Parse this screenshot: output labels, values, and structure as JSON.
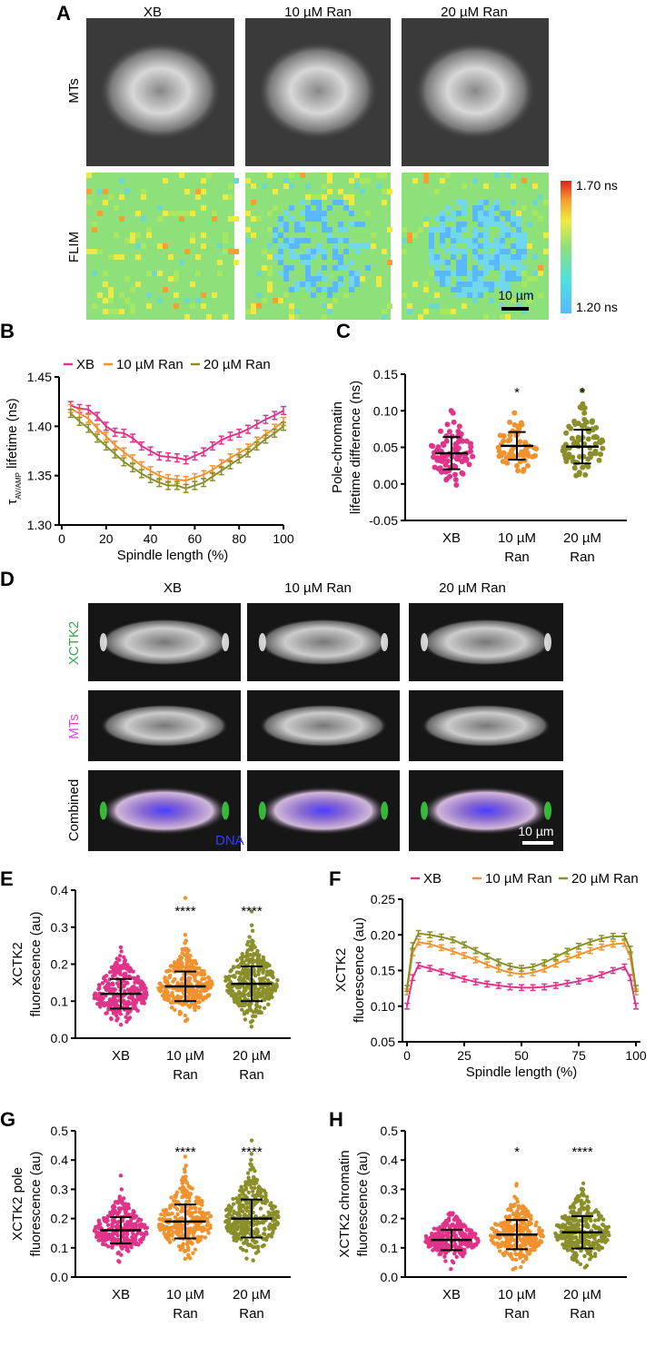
{
  "colors": {
    "XB": "#e0338a",
    "10 µM Ran": "#f0922e",
    "20 µM Ran": "#8a8f2a",
    "XCTK2": "#3aa64a",
    "MTs": "#e040e0",
    "DNA": "#3a3aff"
  },
  "panelA": {
    "label": "A",
    "columns": [
      "XB",
      "10 µM Ran",
      "20 µM Ran"
    ],
    "rows": [
      "MTs",
      "FLIM"
    ],
    "colorbar": {
      "max": "1.70 ns",
      "min": "1.20 ns"
    },
    "scalebar": "10 µm"
  },
  "panelD": {
    "label": "D",
    "columns": [
      "XB",
      "10 µM Ran",
      "20 µM Ran"
    ],
    "rows": [
      "XCTK2",
      "MTs",
      "Combined"
    ],
    "dna_label": "DNA",
    "scalebar": "10 µm"
  },
  "chart_data": [
    {
      "panel": "B",
      "type": "line",
      "xlabel": "Spindle length (%)",
      "ylabel_main": "τ",
      "ylabel_sub": "AV/AMP",
      "ylabel_rest": " lifetime (ns)",
      "xlim": [
        0,
        100
      ],
      "ylim": [
        1.3,
        1.45
      ],
      "xticks": [
        "0",
        "20",
        "40",
        "60",
        "80",
        "100"
      ],
      "yticks": [
        "1.30",
        "1.35",
        "1.40",
        "1.45"
      ],
      "legend": "top",
      "x": [
        4,
        8,
        12,
        16,
        20,
        24,
        28,
        32,
        36,
        40,
        44,
        48,
        52,
        56,
        60,
        64,
        68,
        72,
        76,
        80,
        84,
        88,
        92,
        96,
        100
      ],
      "series": [
        {
          "name": "XB",
          "values": [
            1.421,
            1.418,
            1.417,
            1.41,
            1.4,
            1.394,
            1.393,
            1.388,
            1.38,
            1.375,
            1.37,
            1.369,
            1.368,
            1.366,
            1.37,
            1.374,
            1.38,
            1.386,
            1.39,
            1.393,
            1.397,
            1.402,
            1.407,
            1.411,
            1.416
          ],
          "error": 0.004
        },
        {
          "name": "10 µM Ran",
          "values": [
            1.418,
            1.413,
            1.408,
            1.398,
            1.39,
            1.381,
            1.374,
            1.367,
            1.36,
            1.355,
            1.35,
            1.347,
            1.346,
            1.345,
            1.348,
            1.351,
            1.356,
            1.362,
            1.368,
            1.373,
            1.378,
            1.385,
            1.392,
            1.398,
            1.405
          ],
          "error": 0.004
        },
        {
          "name": "20 µM Ran",
          "values": [
            1.413,
            1.405,
            1.398,
            1.388,
            1.38,
            1.372,
            1.364,
            1.358,
            1.352,
            1.347,
            1.343,
            1.34,
            1.34,
            1.337,
            1.34,
            1.343,
            1.349,
            1.355,
            1.361,
            1.367,
            1.373,
            1.38,
            1.387,
            1.393,
            1.4
          ],
          "error": 0.004
        }
      ]
    },
    {
      "panel": "C",
      "type": "scatter",
      "ylabel": [
        "Pole-chromatin",
        "lifetime difference (ns)"
      ],
      "ylim": [
        -0.05,
        0.15
      ],
      "yticks": [
        "-0.05",
        "0.00",
        "0.05",
        "0.10",
        "0.15"
      ],
      "categories": [
        [
          "XB",
          ""
        ],
        [
          "10 µM",
          "Ran"
        ],
        [
          "20 µM",
          "Ran"
        ]
      ],
      "mean": [
        0.042,
        0.052,
        0.051
      ],
      "sd": [
        0.022,
        0.019,
        0.023
      ],
      "n": [
        80,
        55,
        80
      ],
      "significance": [
        "",
        "*",
        "*"
      ]
    },
    {
      "panel": "E",
      "type": "scatter",
      "ylabel": [
        "XCTK2",
        "fluorescence (au)"
      ],
      "ylim": [
        0,
        0.4
      ],
      "yticks": [
        "0.0",
        "0.1",
        "0.2",
        "0.3",
        "0.4"
      ],
      "categories": [
        [
          "XB",
          ""
        ],
        [
          "10 µM",
          "Ran"
        ],
        [
          "20 µM",
          "Ran"
        ]
      ],
      "mean": [
        0.12,
        0.14,
        0.147
      ],
      "sd": [
        0.04,
        0.04,
        0.047
      ],
      "n": [
        300,
        320,
        360
      ],
      "significance": [
        "",
        "****",
        "****"
      ]
    },
    {
      "panel": "F",
      "type": "line",
      "xlabel": "Spindle length (%)",
      "ylabel": [
        "XCTK2",
        "fluorescence (au)"
      ],
      "xlim": [
        0,
        100
      ],
      "ylim": [
        0.05,
        0.25
      ],
      "xticks": [
        "0",
        "25",
        "50",
        "75",
        "100"
      ],
      "yticks": [
        "0.05",
        "0.10",
        "0.15",
        "0.20",
        "0.25"
      ],
      "legend": "top",
      "x": [
        0,
        2.5,
        5,
        10,
        15,
        20,
        25,
        30,
        35,
        40,
        45,
        50,
        55,
        60,
        65,
        70,
        75,
        80,
        85,
        90,
        95,
        97.5,
        100
      ],
      "series": [
        {
          "name": "XB",
          "values": [
            0.1,
            0.14,
            0.157,
            0.153,
            0.148,
            0.143,
            0.138,
            0.134,
            0.131,
            0.129,
            0.127,
            0.126,
            0.126,
            0.127,
            0.129,
            0.132,
            0.135,
            0.139,
            0.144,
            0.15,
            0.155,
            0.14,
            0.1
          ],
          "error": 0.004
        },
        {
          "name": "10 µM Ran",
          "values": [
            0.12,
            0.175,
            0.19,
            0.187,
            0.182,
            0.177,
            0.171,
            0.165,
            0.158,
            0.152,
            0.147,
            0.145,
            0.147,
            0.152,
            0.159,
            0.166,
            0.172,
            0.178,
            0.183,
            0.187,
            0.188,
            0.17,
            0.12
          ],
          "error": 0.004
        },
        {
          "name": "20 µM Ran",
          "values": [
            0.125,
            0.185,
            0.202,
            0.2,
            0.197,
            0.193,
            0.186,
            0.178,
            0.17,
            0.162,
            0.156,
            0.153,
            0.155,
            0.161,
            0.169,
            0.177,
            0.184,
            0.19,
            0.195,
            0.198,
            0.198,
            0.18,
            0.125
          ],
          "error": 0.004
        }
      ]
    },
    {
      "panel": "G",
      "type": "scatter",
      "ylabel": [
        "XCTK2 pole",
        "fluorescence (au)"
      ],
      "ylim": [
        0,
        0.5
      ],
      "yticks": [
        "0.0",
        "0.1",
        "0.2",
        "0.3",
        "0.4",
        "0.5"
      ],
      "categories": [
        [
          "XB",
          ""
        ],
        [
          "10 µM",
          "Ran"
        ],
        [
          "20 µM",
          "Ran"
        ]
      ],
      "mean": [
        0.16,
        0.19,
        0.2
      ],
      "sd": [
        0.045,
        0.058,
        0.065
      ],
      "n": [
        280,
        300,
        340
      ],
      "significance": [
        "",
        "****",
        "****"
      ]
    },
    {
      "panel": "H",
      "type": "scatter",
      "ylabel": [
        "XCTK2 chromatin",
        "fluorescence (au)"
      ],
      "ylim": [
        0,
        0.5
      ],
      "yticks": [
        "0.0",
        "0.1",
        "0.2",
        "0.3",
        "0.4",
        "0.5"
      ],
      "categories": [
        [
          "XB",
          ""
        ],
        [
          "10 µM",
          "Ran"
        ],
        [
          "20 µM",
          "Ran"
        ]
      ],
      "mean": [
        0.127,
        0.145,
        0.153
      ],
      "sd": [
        0.035,
        0.05,
        0.055
      ],
      "n": [
        280,
        300,
        340
      ],
      "significance": [
        "",
        "*",
        "****"
      ]
    }
  ]
}
